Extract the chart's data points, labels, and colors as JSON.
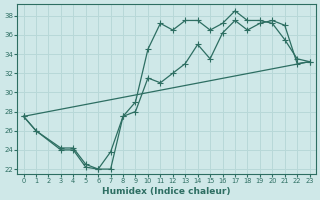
{
  "background_color": "#cfe8e8",
  "grid_color": "#b8d8d8",
  "line_color": "#2d6e62",
  "xlabel": "Humidex (Indice chaleur)",
  "xlim": [
    -0.5,
    23.5
  ],
  "ylim": [
    21.5,
    39.2
  ],
  "xtick_vals": [
    0,
    1,
    2,
    3,
    4,
    5,
    6,
    7,
    8,
    9,
    10,
    11,
    12,
    13,
    14,
    15,
    16,
    17,
    18,
    19,
    20,
    21,
    22,
    23
  ],
  "ytick_vals": [
    22,
    24,
    26,
    28,
    30,
    32,
    34,
    36,
    38
  ],
  "line1_x": [
    0,
    1,
    3,
    4,
    5,
    6,
    7,
    8,
    9,
    10,
    11,
    12,
    13,
    14,
    15,
    16,
    17,
    18,
    19,
    20,
    21,
    22,
    23
  ],
  "line1_y": [
    27.5,
    26.0,
    24.0,
    24.0,
    22.2,
    22.0,
    23.8,
    27.5,
    29.0,
    34.5,
    37.2,
    36.5,
    37.5,
    37.5,
    36.5,
    37.2,
    38.5,
    37.5,
    37.5,
    37.2,
    35.5,
    33.5,
    33.2
  ],
  "line2_x": [
    0,
    1,
    3,
    4,
    5,
    6,
    7,
    8,
    9,
    10,
    11,
    12,
    13,
    14,
    15,
    16,
    17,
    18,
    19,
    20,
    21,
    22,
    23
  ],
  "line2_y": [
    27.5,
    26.0,
    24.2,
    24.2,
    22.5,
    22.0,
    22.0,
    27.5,
    28.0,
    31.5,
    31.0,
    32.0,
    33.0,
    35.0,
    33.5,
    36.2,
    37.5,
    36.5,
    37.2,
    37.5,
    37.0,
    33.0,
    33.2
  ],
  "line3_x": [
    0,
    23
  ],
  "line3_y": [
    27.5,
    33.2
  ]
}
